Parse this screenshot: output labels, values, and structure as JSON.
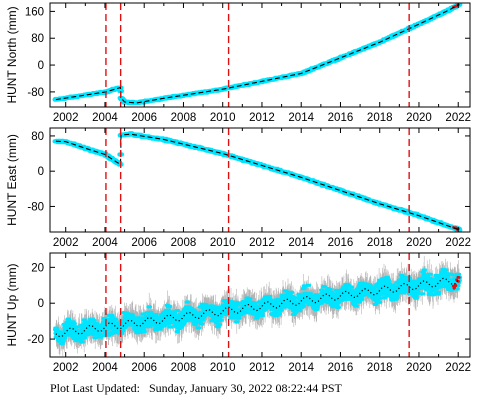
{
  "footer": {
    "label": "Plot Last Updated:",
    "timestamp": "Sunday, January 30, 2022 08:22:44 PST"
  },
  "colors": {
    "data": "#00e5ff",
    "error_bar": "#b4b4b4",
    "model": "#000000",
    "event_line": "#e11010",
    "recent": "#e01010"
  },
  "chart_data": [
    {
      "type": "scatter",
      "title": "",
      "ylabel": "HUNT North (mm)",
      "xlim": [
        2001.2,
        2022.6
      ],
      "ylim": [
        -125,
        185
      ],
      "yticks": [
        -80,
        0,
        80,
        160
      ],
      "xticks": [
        2002,
        2004,
        2006,
        2008,
        2010,
        2012,
        2014,
        2016,
        2018,
        2020,
        2022
      ],
      "event_lines_x": [
        2004.05,
        2004.8,
        2010.3,
        2019.5
      ],
      "series": [
        {
          "role": "gps-daily-position",
          "x": [
            2001.5,
            2004.05,
            2004.79,
            2004.82,
            2005.0,
            2005.6,
            2007.0,
            2010.0,
            2014.0,
            2018.0,
            2020.0,
            2021.5,
            2022.05
          ],
          "y": [
            -103,
            -80,
            -67,
            -98,
            -110,
            -113,
            -99,
            -72,
            -25,
            68,
            122,
            163,
            181
          ]
        },
        {
          "role": "model-fit",
          "x": [
            2001.5,
            2004.05,
            2004.79,
            2004.82,
            2005.0,
            2005.6,
            2007.0,
            2010.0,
            2014.0,
            2018.0,
            2020.0,
            2021.5,
            2022.05
          ],
          "y": [
            -103,
            -80,
            -67,
            -98,
            -110,
            -113,
            -99,
            -72,
            -25,
            68,
            122,
            163,
            181
          ]
        }
      ]
    },
    {
      "type": "scatter",
      "title": "",
      "ylabel": "HUNT East (mm)",
      "xlim": [
        2001.2,
        2022.6
      ],
      "ylim": [
        -138,
        98
      ],
      "yticks": [
        -80,
        0,
        80
      ],
      "xticks": [
        2002,
        2004,
        2006,
        2008,
        2010,
        2012,
        2014,
        2016,
        2018,
        2020,
        2022
      ],
      "event_lines_x": [
        2004.05,
        2004.8,
        2010.3,
        2019.5
      ],
      "series": [
        {
          "role": "gps-daily-position",
          "x": [
            2001.5,
            2002.0,
            2003.0,
            2004.0,
            2004.79,
            2004.82,
            2005.3,
            2007.0,
            2010.0,
            2014.0,
            2018.0,
            2020.0,
            2022.05
          ],
          "y": [
            68,
            67,
            52,
            38,
            15,
            82,
            84,
            72,
            40,
            -14,
            -74,
            -101,
            -133
          ]
        },
        {
          "role": "model-fit",
          "x": [
            2001.5,
            2002.0,
            2003.0,
            2004.0,
            2004.79,
            2004.82,
            2005.3,
            2007.0,
            2010.0,
            2014.0,
            2018.0,
            2020.0,
            2022.05
          ],
          "y": [
            68,
            67,
            52,
            38,
            15,
            82,
            84,
            72,
            40,
            -14,
            -74,
            -101,
            -133
          ]
        }
      ]
    },
    {
      "type": "scatter",
      "title": "",
      "ylabel": "HUNT Up (mm)",
      "xlim": [
        2001.2,
        2022.6
      ],
      "ylim": [
        -30,
        28
      ],
      "yticks": [
        -20,
        0,
        20
      ],
      "xticks": [
        2002,
        2004,
        2006,
        2008,
        2010,
        2012,
        2014,
        2016,
        2018,
        2020,
        2022
      ],
      "event_lines_x": [
        2004.05,
        2004.8,
        2010.3,
        2019.5
      ],
      "seasonal_amplitude_mm": 2,
      "series": [
        {
          "role": "gps-daily-position",
          "x": [
            2001.5,
            2022.05
          ],
          "y": [
            -17,
            13
          ]
        },
        {
          "role": "model-fit",
          "x": [
            2001.5,
            2022.05
          ],
          "y": [
            -17,
            13
          ]
        }
      ]
    }
  ]
}
